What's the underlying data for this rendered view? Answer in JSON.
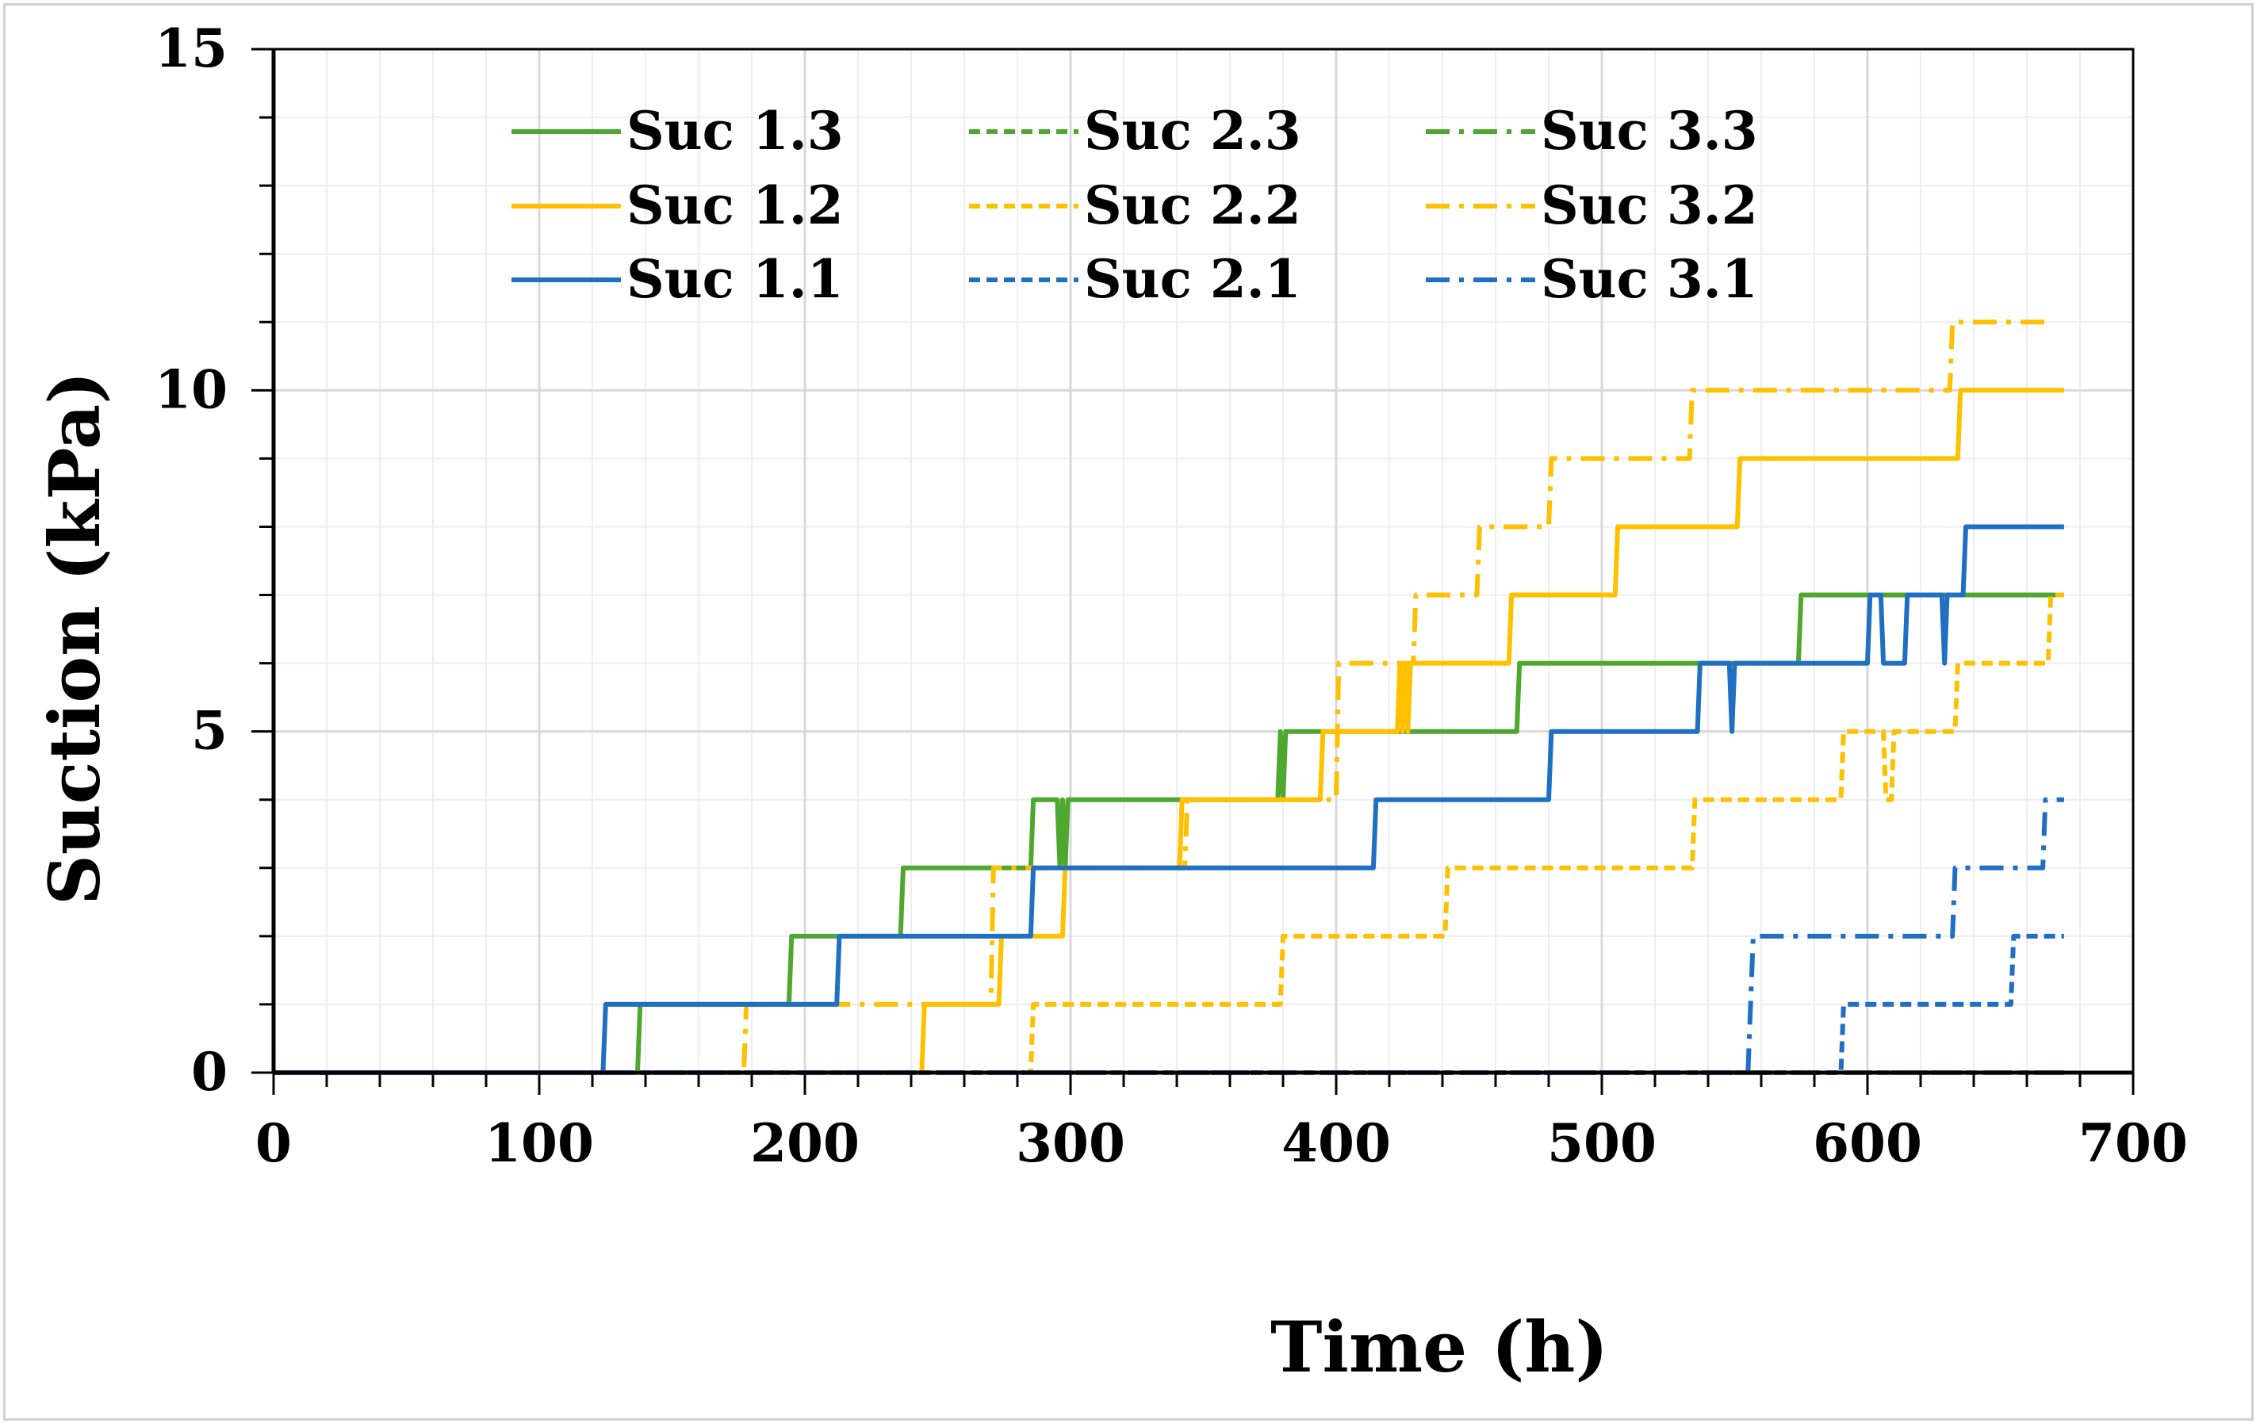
{
  "chart_data": {
    "type": "line",
    "title": "",
    "xlabel": "Time (h)",
    "ylabel": "Suction (kPa)",
    "xlim": [
      0,
      700
    ],
    "ylim": [
      0,
      15
    ],
    "xticks": [
      0,
      100,
      200,
      300,
      400,
      500,
      600,
      700
    ],
    "yticks": [
      0,
      5,
      10,
      15
    ],
    "x_tick_labels": [
      "0",
      "100",
      "200",
      "300",
      "400",
      "500",
      "600",
      "700"
    ],
    "y_tick_labels": [
      "0",
      "5",
      "10",
      "15"
    ],
    "grid": true,
    "legend_position": "top",
    "colors": {
      "green": "#4ea72e",
      "yellow": "#ffc000",
      "blue": "#1f6fc2",
      "grid": "#d9d9d9",
      "minor_grid": "#eeeeee"
    },
    "series": [
      {
        "name": "Suc 1.3",
        "color": "#4ea72e",
        "dash": "solid",
        "points": [
          [
            0,
            0
          ],
          [
            137,
            0
          ],
          [
            138,
            1
          ],
          [
            194,
            1
          ],
          [
            195,
            2
          ],
          [
            236,
            2
          ],
          [
            237,
            3
          ],
          [
            285,
            3
          ],
          [
            286,
            4
          ],
          [
            295,
            4
          ],
          [
            296,
            3
          ],
          [
            297,
            4
          ],
          [
            298,
            3
          ],
          [
            299,
            4
          ],
          [
            378,
            4
          ],
          [
            379,
            5
          ],
          [
            380,
            4
          ],
          [
            381,
            5
          ],
          [
            468,
            5
          ],
          [
            469,
            6
          ],
          [
            574,
            6
          ],
          [
            575,
            7
          ],
          [
            674,
            7
          ]
        ]
      },
      {
        "name": "Suc 2.3",
        "color": "#4ea72e",
        "dash": "dashed",
        "points": [
          [
            0,
            0
          ],
          [
            674,
            0
          ]
        ]
      },
      {
        "name": "Suc 3.3",
        "color": "#4ea72e",
        "dash": "dashdot",
        "points": [
          [
            0,
            0
          ],
          [
            674,
            0
          ]
        ]
      },
      {
        "name": "Suc 1.2",
        "color": "#ffc000",
        "dash": "solid",
        "points": [
          [
            0,
            0
          ],
          [
            244,
            0
          ],
          [
            245,
            1
          ],
          [
            273,
            1
          ],
          [
            274,
            2
          ],
          [
            297,
            2
          ],
          [
            298,
            3
          ],
          [
            341,
            3
          ],
          [
            342,
            4
          ],
          [
            394,
            4
          ],
          [
            395,
            5
          ],
          [
            423,
            5
          ],
          [
            424,
            6
          ],
          [
            425,
            5
          ],
          [
            426,
            6
          ],
          [
            427,
            5
          ],
          [
            428,
            6
          ],
          [
            465,
            6
          ],
          [
            466,
            7
          ],
          [
            505,
            7
          ],
          [
            506,
            8
          ],
          [
            551,
            8
          ],
          [
            552,
            9
          ],
          [
            634,
            9
          ],
          [
            635,
            10
          ],
          [
            674,
            10
          ]
        ]
      },
      {
        "name": "Suc 2.2",
        "color": "#ffc000",
        "dash": "dashed",
        "points": [
          [
            0,
            0
          ],
          [
            285,
            0
          ],
          [
            286,
            1
          ],
          [
            379,
            1
          ],
          [
            380,
            2
          ],
          [
            441,
            2
          ],
          [
            442,
            3
          ],
          [
            534,
            3
          ],
          [
            535,
            4
          ],
          [
            590,
            4
          ],
          [
            591,
            5
          ],
          [
            606,
            5
          ],
          [
            607,
            4
          ],
          [
            609,
            4
          ],
          [
            610,
            5
          ],
          [
            633,
            5
          ],
          [
            634,
            6
          ],
          [
            668,
            6
          ],
          [
            669,
            7
          ],
          [
            674,
            7
          ]
        ]
      },
      {
        "name": "Suc 3.2",
        "color": "#ffc000",
        "dash": "dashdot",
        "points": [
          [
            0,
            0
          ],
          [
            177,
            0
          ],
          [
            178,
            1
          ],
          [
            270,
            1
          ],
          [
            271,
            3
          ],
          [
            343,
            3
          ],
          [
            344,
            4
          ],
          [
            400,
            4
          ],
          [
            401,
            6
          ],
          [
            429,
            6
          ],
          [
            430,
            7
          ],
          [
            453,
            7
          ],
          [
            454,
            8
          ],
          [
            480,
            8
          ],
          [
            481,
            9
          ],
          [
            533,
            9
          ],
          [
            534,
            10
          ],
          [
            631,
            10
          ],
          [
            632,
            11
          ],
          [
            668,
            11
          ]
        ]
      },
      {
        "name": "Suc 1.1",
        "color": "#1f6fc2",
        "dash": "solid",
        "points": [
          [
            0,
            0
          ],
          [
            124,
            0
          ],
          [
            125,
            1
          ],
          [
            212,
            1
          ],
          [
            213,
            2
          ],
          [
            285,
            2
          ],
          [
            286,
            3
          ],
          [
            414,
            3
          ],
          [
            415,
            4
          ],
          [
            480,
            4
          ],
          [
            481,
            5
          ],
          [
            536,
            5
          ],
          [
            537,
            6
          ],
          [
            548,
            6
          ],
          [
            549,
            5
          ],
          [
            550,
            6
          ],
          [
            600,
            6
          ],
          [
            601,
            7
          ],
          [
            605,
            7
          ],
          [
            606,
            6
          ],
          [
            614,
            6
          ],
          [
            615,
            7
          ],
          [
            628,
            7
          ],
          [
            629,
            6
          ],
          [
            630,
            7
          ],
          [
            636,
            7
          ],
          [
            637,
            8
          ],
          [
            674,
            8
          ]
        ]
      },
      {
        "name": "Suc 2.1",
        "color": "#1f6fc2",
        "dash": "dashed",
        "points": [
          [
            0,
            0
          ],
          [
            590,
            0
          ],
          [
            591,
            1
          ],
          [
            654,
            1
          ],
          [
            655,
            2
          ],
          [
            674,
            2
          ]
        ]
      },
      {
        "name": "Suc 3.1",
        "color": "#1f6fc2",
        "dash": "dashdot",
        "points": [
          [
            0,
            0
          ],
          [
            555,
            0
          ],
          [
            556,
            1
          ],
          [
            557,
            2
          ],
          [
            632,
            2
          ],
          [
            633,
            3
          ],
          [
            666,
            3
          ],
          [
            667,
            4
          ],
          [
            674,
            4
          ]
        ]
      }
    ],
    "legend_order": [
      "Suc 1.3",
      "Suc 2.3",
      "Suc 3.3",
      "Suc 1.2",
      "Suc 2.2",
      "Suc 3.2",
      "Suc 1.1",
      "Suc 2.1",
      "Suc 3.1"
    ]
  }
}
